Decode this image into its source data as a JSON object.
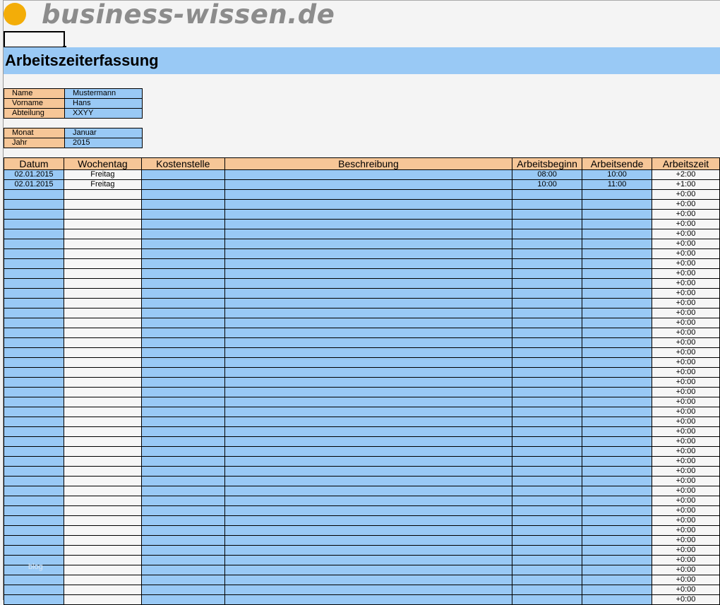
{
  "logo": {
    "text": "business-wissen.de",
    "dot_color": "#f3ad08"
  },
  "title": "Arbeitszeiterfassung",
  "person": [
    {
      "label": "Name",
      "value": "Mustermann"
    },
    {
      "label": "Vorname",
      "value": "Hans"
    },
    {
      "label": "Abteilung",
      "value": "XXYY"
    }
  ],
  "period": [
    {
      "label": "Monat",
      "value": "Januar"
    },
    {
      "label": "Jahr",
      "value": "2015"
    }
  ],
  "table": {
    "headers": [
      "Datum",
      "Wochentag",
      "Kostenstelle",
      "Beschreibung",
      "Arbeitsbeginn",
      "Arbeitsende",
      "Arbeitszeit"
    ],
    "rows": [
      [
        "02.01.2015",
        "Freitag",
        "",
        "",
        "08:00",
        "10:00",
        "+2:00"
      ],
      [
        "02.01.2015",
        "Freitag",
        "",
        "",
        "10:00",
        "11:00",
        "+1:00"
      ]
    ],
    "empty_row_count": 42,
    "empty_row_arbeitszeit": "+0:00"
  },
  "watermark": "blog",
  "colors": {
    "blue": "#99c9f5",
    "orange": "#f6c697"
  }
}
